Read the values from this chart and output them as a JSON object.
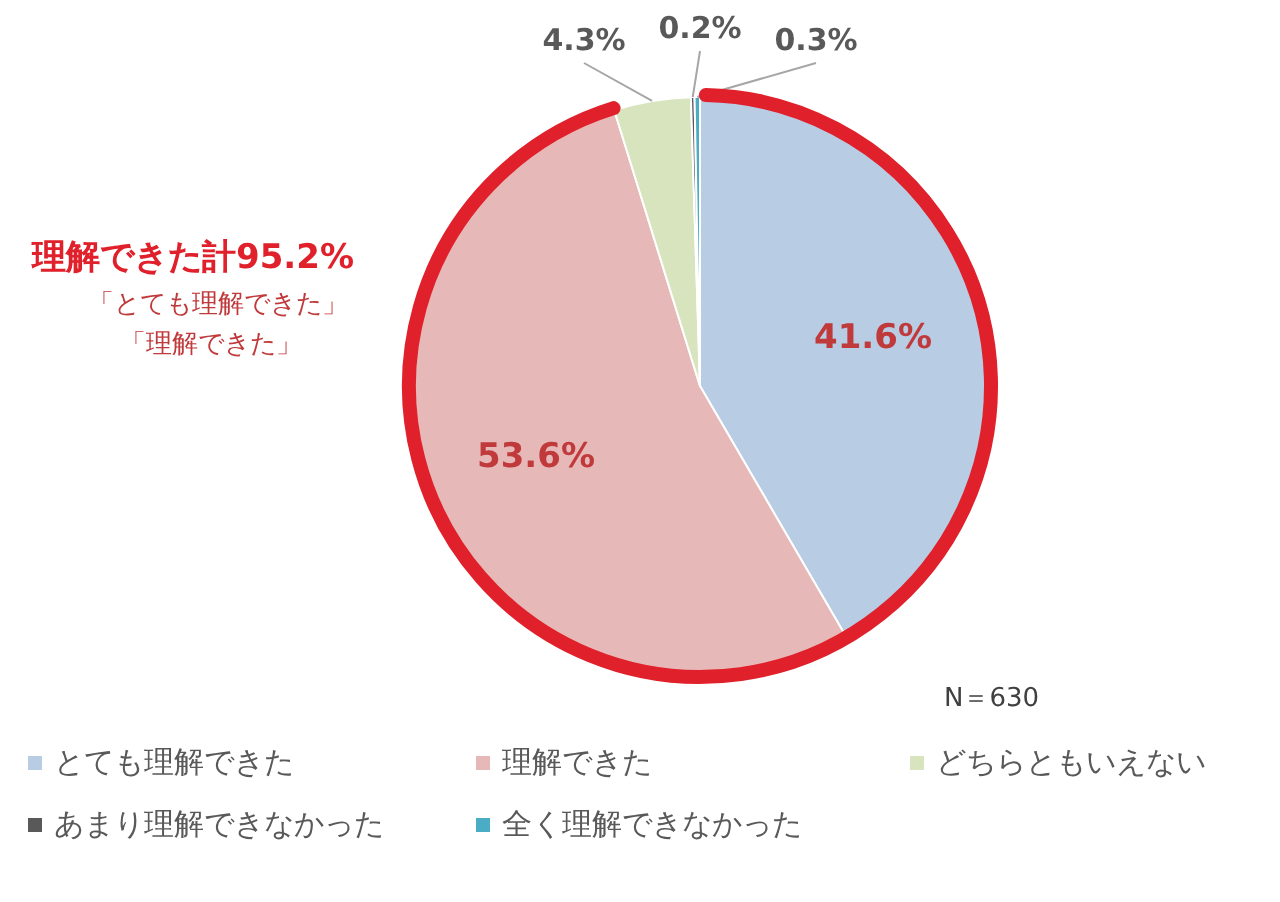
{
  "chart_data": {
    "type": "pie",
    "categories": [
      "とても理解できた",
      "理解できた",
      "どちらともいえない",
      "あまり理解できなかった",
      "全く理解できなかった"
    ],
    "values": [
      41.6,
      53.6,
      4.3,
      0.2,
      0.3
    ],
    "value_labels": [
      "41.6%",
      "53.6%",
      "4.3%",
      "0.2%",
      "0.3%"
    ],
    "colors": [
      "#b8cce4",
      "#e6b9b8",
      "#d7e4bd",
      "#595959",
      "#4bacc6"
    ],
    "legend": "bottom",
    "annotations": [
      "理解できた計95.2%",
      "「とても理解できた」",
      "「理解できた」",
      "N＝630"
    ]
  }
}
